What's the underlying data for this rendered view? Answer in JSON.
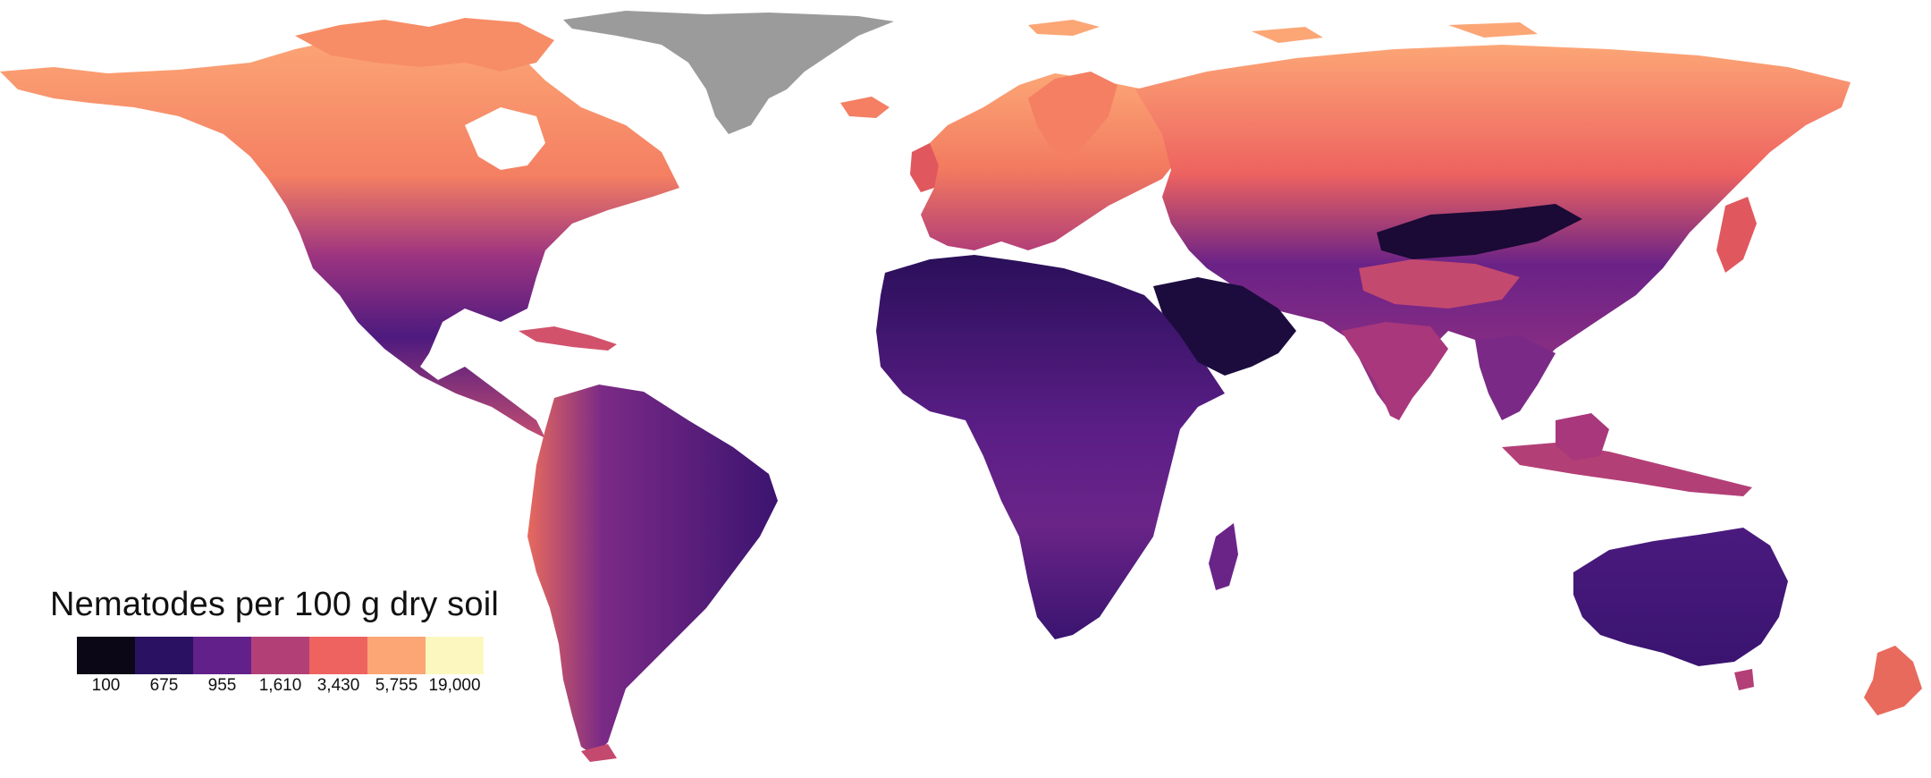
{
  "legend": {
    "title": "Nematodes per 100 g dry soil",
    "colors": [
      "#0b0717",
      "#2b1161",
      "#62208a",
      "#b33f77",
      "#ee6360",
      "#fca676",
      "#fcf7be"
    ],
    "labels": [
      "100",
      "675",
      "955",
      "1,610",
      "3,430",
      "5,755",
      "19,000"
    ]
  },
  "map": {
    "no_data_color": "#9b9b9b"
  }
}
